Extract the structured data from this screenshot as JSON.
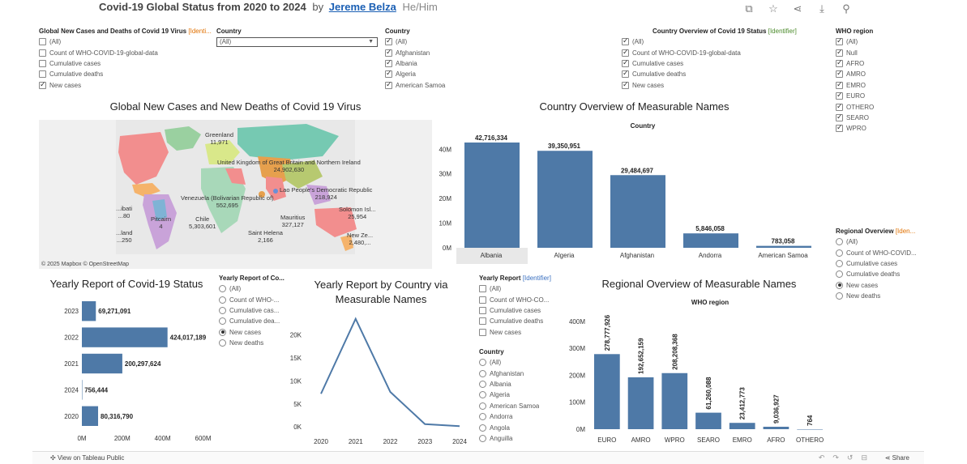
{
  "header": {
    "title": "Covid-19 Global Status from 2020 to 2024",
    "by": "by",
    "author": "Jereme Belza",
    "pronouns": "He/Him",
    "icons": [
      "revert-icon",
      "favorite-star-icon",
      "share-icon",
      "download-icon",
      "badge-icon"
    ]
  },
  "filters": {
    "global_new_cases": {
      "title": "Global New Cases and Deaths of Covid 19 Virus",
      "tag": "[Identi...",
      "items": [
        {
          "label": "(All)",
          "checked": false
        },
        {
          "label": "Count of WHO-COVID-19-global-data",
          "checked": false
        },
        {
          "label": "Cumulative cases",
          "checked": false
        },
        {
          "label": "Cumulative deaths",
          "checked": false
        },
        {
          "label": "New cases",
          "checked": true
        }
      ]
    },
    "country_dropdown": {
      "title": "Country",
      "value": "(All)"
    },
    "country_list": {
      "title": "Country",
      "items": [
        {
          "label": "(All)",
          "checked": true
        },
        {
          "label": "Afghanistan",
          "checked": true
        },
        {
          "label": "Albania",
          "checked": true
        },
        {
          "label": "Algeria",
          "checked": true
        },
        {
          "label": "American Samoa",
          "checked": true
        }
      ]
    },
    "country_overview": {
      "title": "Country Overview of Covid 19 Status",
      "tag": "[Identifier]",
      "items": [
        {
          "label": "(All)",
          "checked": true
        },
        {
          "label": "Count of WHO-COVID-19-global-data",
          "checked": true
        },
        {
          "label": "Cumulative cases",
          "checked": true
        },
        {
          "label": "Cumulative deaths",
          "checked": true
        },
        {
          "label": "New cases",
          "checked": true
        }
      ]
    },
    "who_region": {
      "title": "WHO region",
      "items": [
        {
          "label": "(All)",
          "checked": true
        },
        {
          "label": "Null",
          "checked": true
        },
        {
          "label": "AFRO",
          "checked": true
        },
        {
          "label": "AMRO",
          "checked": true
        },
        {
          "label": "EMRO",
          "checked": true
        },
        {
          "label": "EURO",
          "checked": true
        },
        {
          "label": "OTHERO",
          "checked": true
        },
        {
          "label": "SEARO",
          "checked": true
        },
        {
          "label": "WPRO",
          "checked": true
        }
      ]
    },
    "regional_overview": {
      "title": "Regional Overview",
      "tag": "[Iden...",
      "items": [
        {
          "label": "(All)",
          "selected": false
        },
        {
          "label": "Count of WHO-COVID...",
          "selected": false
        },
        {
          "label": "Cumulative cases",
          "selected": false
        },
        {
          "label": "Cumulative deaths",
          "selected": false
        },
        {
          "label": "New cases",
          "selected": true
        },
        {
          "label": "New deaths",
          "selected": false
        }
      ]
    },
    "yearly_report_radio": {
      "title": "Yearly Report of Co...",
      "items": [
        {
          "label": "(All)",
          "selected": false
        },
        {
          "label": "Count of WHO-...",
          "selected": false
        },
        {
          "label": "Cumulative cas...",
          "selected": false
        },
        {
          "label": "Cumulative dea...",
          "selected": false
        },
        {
          "label": "New cases",
          "selected": true
        },
        {
          "label": "New deaths",
          "selected": false
        }
      ]
    },
    "yearly_report_identifier": {
      "title": "Yearly Report",
      "tag": "[Identifier]",
      "items": [
        {
          "label": "(All)",
          "checked": false
        },
        {
          "label": "Count of WHO-CO...",
          "checked": false
        },
        {
          "label": "Cumulative cases",
          "checked": false
        },
        {
          "label": "Cumulative deaths",
          "checked": false
        },
        {
          "label": "New cases",
          "checked": false
        }
      ]
    },
    "country_radio": {
      "title": "Country",
      "items": [
        {
          "label": "(All)",
          "selected": false
        },
        {
          "label": "Afghanistan",
          "selected": false
        },
        {
          "label": "Albania",
          "selected": false
        },
        {
          "label": "Algeria",
          "selected": false
        },
        {
          "label": "American Samoa",
          "selected": false
        },
        {
          "label": "Andorra",
          "selected": false
        },
        {
          "label": "Angola",
          "selected": false
        },
        {
          "label": "Anguilla",
          "selected": false
        }
      ]
    }
  },
  "map": {
    "title": "Global New Cases and New Deaths of Covid 19 Virus",
    "credit": "© 2025 Mapbox  © OpenStreetMap",
    "labels": [
      {
        "name": "Greenland",
        "value": "11,971"
      },
      {
        "name": "United Kingdom of Great Britain and Northern Ireland",
        "value": "24,902,630"
      },
      {
        "name": "Venezuela (Bolivarian Republic of)",
        "value": "552,695"
      },
      {
        "name": "Lao People's Democratic Republic",
        "value": "218,924"
      },
      {
        "name": "Pitcairn",
        "value": "4"
      },
      {
        "name": "Chile",
        "value": "5,303,601"
      },
      {
        "name": "Mauritius",
        "value": "327,127"
      },
      {
        "name": "Solomon Isl...",
        "value": "25,954"
      },
      {
        "name": "Saint Helena",
        "value": "2,166"
      },
      {
        "name": "New Ze...",
        "value": "2,480,..."
      },
      {
        "name": "...ibati",
        "value": "...80"
      },
      {
        "name": "...land",
        "value": "...250"
      }
    ]
  },
  "country_overview_chart": {
    "title": "Country Overview of Measurable Names",
    "chart_data": {
      "type": "bar",
      "header": "Country",
      "categories": [
        "Albania",
        "Algeria",
        "Afghanistan",
        "Andorra",
        "American Samoa"
      ],
      "values": [
        42716334,
        39350951,
        29484697,
        5846058,
        783058
      ],
      "value_labels": [
        "42,716,334",
        "39,350,951",
        "29,484,697",
        "5,846,058",
        "783,058"
      ],
      "yticks": [
        0,
        10000000,
        20000000,
        30000000,
        40000000
      ],
      "ytick_labels": [
        "0M",
        "10M",
        "20M",
        "30M",
        "40M"
      ],
      "ylim": [
        0,
        46000000
      ],
      "color": "#4e79a7",
      "highlight_category": "Albania"
    }
  },
  "yearly_report_chart": {
    "title": "Yearly Report of Covid-19 Status",
    "chart_data": {
      "type": "bar",
      "orientation": "horizontal",
      "categories": [
        "2023",
        "2022",
        "2021",
        "2024",
        "2020"
      ],
      "values": [
        69271091,
        424017189,
        200297624,
        756444,
        80316790
      ],
      "value_labels": [
        "69,271,091",
        "424,017,189",
        "200,297,624",
        "756,444",
        "80,316,790"
      ],
      "xticks": [
        0,
        200000000,
        400000000,
        600000000
      ],
      "xtick_labels": [
        "0M",
        "200M",
        "400M",
        "600M"
      ],
      "xlim": [
        0,
        650000000
      ],
      "color": "#4e79a7"
    }
  },
  "yearly_by_country_chart": {
    "title_line1": "Yearly Report by Country via",
    "title_line2": "Measurable Names",
    "chart_data": {
      "type": "line",
      "x": [
        "2020",
        "2021",
        "2022",
        "2023",
        "2024"
      ],
      "values": [
        7200,
        23500,
        7600,
        600,
        150
      ],
      "yticks": [
        0,
        5000,
        10000,
        15000,
        20000
      ],
      "ytick_labels": [
        "0K",
        "5K",
        "10K",
        "15K",
        "20K"
      ],
      "ylim": [
        -500,
        24500
      ],
      "color": "#4e79a7"
    }
  },
  "regional_chart": {
    "title": "Regional Overview of Measurable Names",
    "chart_data": {
      "type": "bar",
      "header": "WHO region",
      "categories": [
        "EURO",
        "AMRO",
        "WPRO",
        "SEARO",
        "EMRO",
        "AFRO",
        "OTHERO"
      ],
      "values": [
        278777926,
        192652159,
        208208368,
        61260088,
        23412773,
        9036927,
        764
      ],
      "value_labels": [
        "278,777,926",
        "192,652,159",
        "208,208,368",
        "61,260,088",
        "23,412,773",
        "9,036,927",
        "764"
      ],
      "yticks": [
        0,
        100000000,
        200000000,
        300000000,
        400000000
      ],
      "ytick_labels": [
        "0M",
        "100M",
        "200M",
        "300M",
        "400M"
      ],
      "ylim": [
        0,
        430000000
      ],
      "color": "#4e79a7"
    }
  },
  "footer": {
    "view_on": "View on Tableau Public",
    "share": "Share"
  }
}
